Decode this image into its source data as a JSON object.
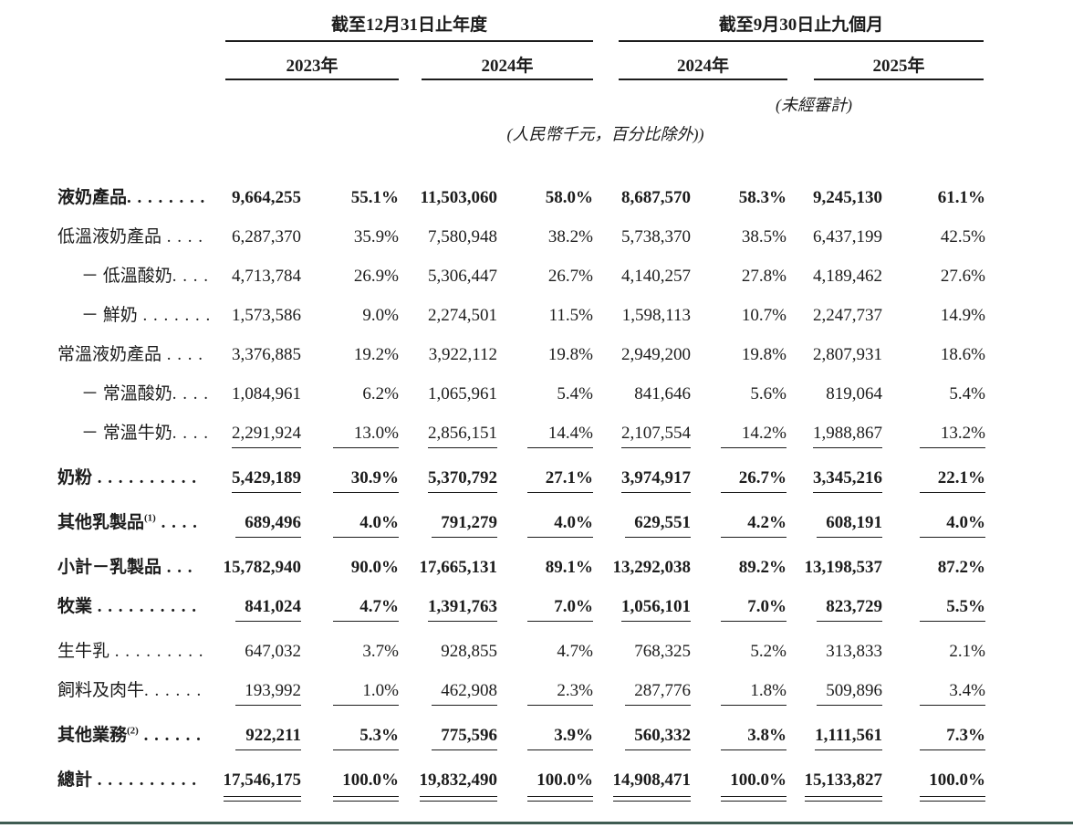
{
  "table": {
    "col_groups": [
      {
        "title": "截至12月31日止年度",
        "years": [
          "2023年",
          "2024年"
        ]
      },
      {
        "title": "截至9月30日止九個月",
        "years": [
          "2024年",
          "2025年"
        ]
      }
    ],
    "unaudited_note": "(未經審計)",
    "units_note": "(人民幣千元，百分比除外))",
    "rows": [
      {
        "label": "液奶產品",
        "sup": "",
        "dots": ". . . . . . . .",
        "bold": true,
        "indent": false,
        "underline": "none",
        "values": [
          "9,664,255",
          "55.1%",
          "11,503,060",
          "58.0%",
          "8,687,570",
          "58.3%",
          "9,245,130",
          "61.1%"
        ]
      },
      {
        "label": "低溫液奶產品",
        "sup": "",
        "dots": " . . . .",
        "bold": false,
        "indent": false,
        "underline": "none",
        "values": [
          "6,287,370",
          "35.9%",
          "7,580,948",
          "38.2%",
          "5,738,370",
          "38.5%",
          "6,437,199",
          "42.5%"
        ]
      },
      {
        "label": "－ 低溫酸奶",
        "sup": "",
        "dots": ". . . .",
        "bold": false,
        "indent": true,
        "underline": "none",
        "values": [
          "4,713,784",
          "26.9%",
          "5,306,447",
          "26.7%",
          "4,140,257",
          "27.8%",
          "4,189,462",
          "27.6%"
        ]
      },
      {
        "label": "－ 鮮奶",
        "sup": "",
        "dots": " . . . . . . .",
        "bold": false,
        "indent": true,
        "underline": "none",
        "values": [
          "1,573,586",
          "9.0%",
          "2,274,501",
          "11.5%",
          "1,598,113",
          "10.7%",
          "2,247,737",
          "14.9%"
        ]
      },
      {
        "label": "常溫液奶產品",
        "sup": "",
        "dots": " . . . .",
        "bold": false,
        "indent": false,
        "underline": "none",
        "values": [
          "3,376,885",
          "19.2%",
          "3,922,112",
          "19.8%",
          "2,949,200",
          "19.8%",
          "2,807,931",
          "18.6%"
        ]
      },
      {
        "label": "－ 常溫酸奶",
        "sup": "",
        "dots": ". . . .",
        "bold": false,
        "indent": true,
        "underline": "none",
        "values": [
          "1,084,961",
          "6.2%",
          "1,065,961",
          "5.4%",
          "841,646",
          "5.6%",
          "819,064",
          "5.4%"
        ]
      },
      {
        "label": "－ 常溫牛奶",
        "sup": "",
        "dots": ". . . .",
        "bold": false,
        "indent": true,
        "underline": "single",
        "values": [
          "2,291,924",
          "13.0%",
          "2,856,151",
          "14.4%",
          "2,107,554",
          "14.2%",
          "1,988,867",
          "13.2%"
        ]
      },
      {
        "label": "奶粉",
        "sup": "",
        "dots": " . . . . . . . . . .",
        "bold": true,
        "indent": false,
        "underline": "single",
        "values": [
          "5,429,189",
          "30.9%",
          "5,370,792",
          "27.1%",
          "3,974,917",
          "26.7%",
          "3,345,216",
          "22.1%"
        ]
      },
      {
        "label": "其他乳製品",
        "sup": "(1)",
        "dots": " . . . .",
        "bold": true,
        "indent": false,
        "underline": "single",
        "values": [
          "689,496",
          "4.0%",
          "791,279",
          "4.0%",
          "629,551",
          "4.2%",
          "608,191",
          "4.0%"
        ]
      },
      {
        "label": "小計－乳製品",
        "sup": "",
        "dots": " . . .",
        "bold": true,
        "indent": false,
        "underline": "none",
        "values": [
          "15,782,940",
          "90.0%",
          "17,665,131",
          "89.1%",
          "13,292,038",
          "89.2%",
          "13,198,537",
          "87.2%"
        ]
      },
      {
        "label": "牧業",
        "sup": "",
        "dots": " . . . . . . . . . .",
        "bold": true,
        "indent": false,
        "underline": "single",
        "values": [
          "841,024",
          "4.7%",
          "1,391,763",
          "7.0%",
          "1,056,101",
          "7.0%",
          "823,729",
          "5.5%"
        ]
      },
      {
        "label": "生牛乳",
        "sup": "",
        "dots": " . . . . . . . . .",
        "bold": false,
        "indent": false,
        "underline": "none",
        "values": [
          "647,032",
          "3.7%",
          "928,855",
          "4.7%",
          "768,325",
          "5.2%",
          "313,833",
          "2.1%"
        ]
      },
      {
        "label": "飼料及肉牛",
        "sup": "",
        "dots": ". . . . . .",
        "bold": false,
        "indent": false,
        "underline": "single",
        "values": [
          "193,992",
          "1.0%",
          "462,908",
          "2.3%",
          "287,776",
          "1.8%",
          "509,896",
          "3.4%"
        ]
      },
      {
        "label": "其他業務",
        "sup": "(2)",
        "dots": " . . . . . .",
        "bold": true,
        "indent": false,
        "underline": "single",
        "values": [
          "922,211",
          "5.3%",
          "775,596",
          "3.9%",
          "560,332",
          "3.8%",
          "1,111,561",
          "7.3%"
        ]
      },
      {
        "label": "總計",
        "sup": "",
        "dots": " . . . . . . . . . .",
        "bold": true,
        "indent": false,
        "underline": "double",
        "values": [
          "17,546,175",
          "100.0%",
          "19,832,490",
          "100.0%",
          "14,908,471",
          "100.0%",
          "15,133,827",
          "100.0%"
        ]
      }
    ]
  },
  "colors": {
    "footer_rule": "#3f5c52",
    "text": "#1c1c1c"
  }
}
